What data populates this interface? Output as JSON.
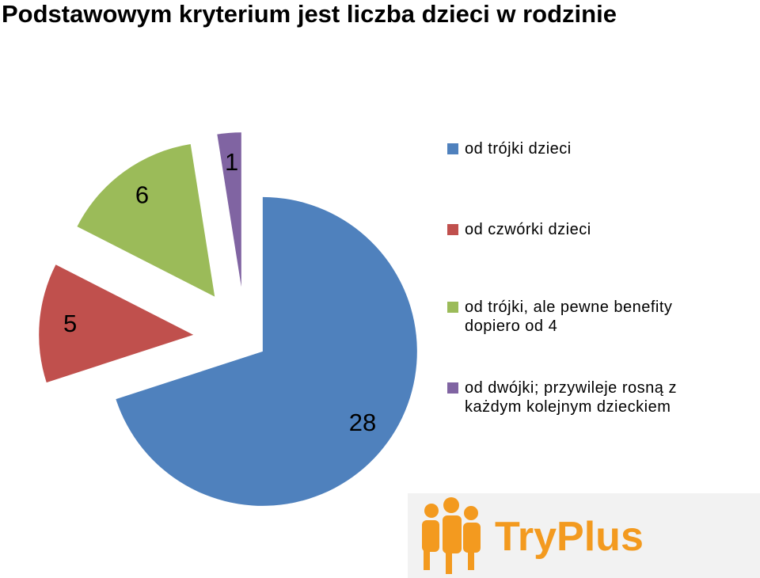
{
  "chart_data": {
    "type": "pie",
    "title": "Podstawowym kryterium jest liczba dzieci w rodzinie",
    "categories": [
      "od trójki dzieci",
      "od czwórki dzieci",
      "od trójki, ale pewne benefity dopiero od 4",
      "od dwójki; przywileje rosną z każdym kolejnym dzieckiem"
    ],
    "values": [
      28,
      5,
      6,
      1
    ],
    "colors": [
      "#4f81bd",
      "#c0504d",
      "#9bbb59",
      "#8064a2"
    ],
    "legend": "right"
  },
  "logo": {
    "text": "TryPlus"
  }
}
